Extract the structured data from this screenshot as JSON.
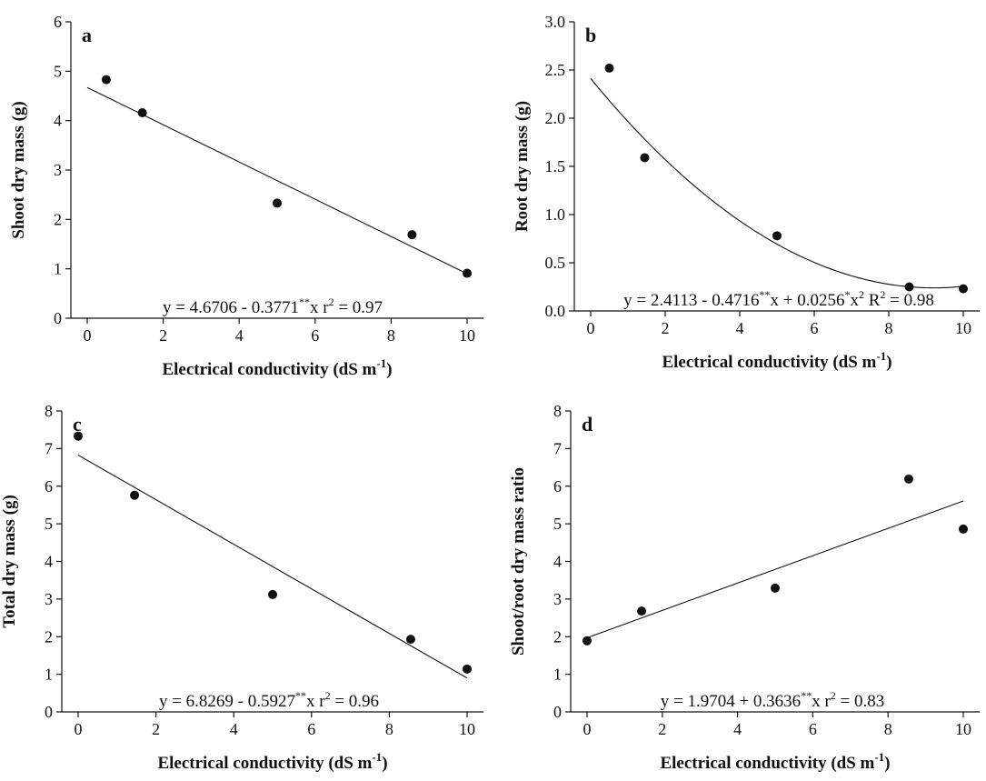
{
  "chart_data": [
    {
      "panel_label": "a",
      "type": "scatter",
      "xlabel": "Electrical conductivity (dS m",
      "xlabel_sup": "-1",
      "xlabel_end": ")",
      "ylabel": "Shoot dry mass (g)",
      "xlim": [
        0,
        10
      ],
      "ylim": [
        0,
        6
      ],
      "xticks": [
        "0",
        "2",
        "4",
        "6",
        "8",
        "10"
      ],
      "yticks": [
        "0",
        "1",
        "2",
        "3",
        "4",
        "5",
        "6"
      ],
      "points": [
        {
          "x": 0.5,
          "y": 4.83
        },
        {
          "x": 1.45,
          "y": 4.16
        },
        {
          "x": 5.0,
          "y": 2.33
        },
        {
          "x": 8.55,
          "y": 1.69
        },
        {
          "x": 10.0,
          "y": 0.91
        }
      ],
      "fit": {
        "kind": "linear",
        "coef": [
          4.6706,
          -0.3771
        ],
        "x_range": [
          0,
          10
        ]
      },
      "equation": [
        {
          "t": "y = 4.6706 - 0.3771"
        },
        {
          "t": "**",
          "sup": true
        },
        {
          "t": "x  r"
        },
        {
          "t": "2",
          "sup": true
        },
        {
          "t": " = 0.97"
        }
      ]
    },
    {
      "panel_label": "b",
      "type": "scatter",
      "xlabel": "Electrical conductivity (dS m",
      "xlabel_sup": "-1",
      "xlabel_end": ")",
      "ylabel": "Root dry mass (g)",
      "xlim": [
        0,
        10
      ],
      "ylim": [
        0,
        3
      ],
      "xticks": [
        "0",
        "2",
        "4",
        "6",
        "8",
        "10"
      ],
      "yticks": [
        "0.0",
        "0.5",
        "1.0",
        "1.5",
        "2.0",
        "2.5",
        "3.0"
      ],
      "points": [
        {
          "x": 0.5,
          "y": 2.52
        },
        {
          "x": 1.45,
          "y": 1.59
        },
        {
          "x": 5.0,
          "y": 0.78
        },
        {
          "x": 8.55,
          "y": 0.25
        },
        {
          "x": 10.0,
          "y": 0.23
        }
      ],
      "fit": {
        "kind": "quadratic",
        "coef": [
          2.4113,
          -0.4716,
          0.0256
        ],
        "x_range": [
          0,
          10
        ]
      },
      "equation": [
        {
          "t": "y = 2.4113 - 0.4716"
        },
        {
          "t": "**",
          "sup": true
        },
        {
          "t": "x + 0.0256"
        },
        {
          "t": "*",
          "sup": true
        },
        {
          "t": "x"
        },
        {
          "t": "2",
          "sup": true
        },
        {
          "t": " R"
        },
        {
          "t": "2",
          "sup": true
        },
        {
          "t": " = 0.98"
        }
      ]
    },
    {
      "panel_label": "c",
      "type": "scatter",
      "xlabel": "Electrical conductivity (dS m",
      "xlabel_sup": "-1",
      "xlabel_end": ")",
      "ylabel": "Total dry mass (g)",
      "xlim": [
        0,
        10
      ],
      "ylim": [
        0,
        8
      ],
      "xticks": [
        "0",
        "2",
        "4",
        "6",
        "8",
        "10"
      ],
      "yticks": [
        "0",
        "1",
        "2",
        "3",
        "4",
        "5",
        "6",
        "7",
        "8"
      ],
      "points": [
        {
          "x": 0.0,
          "y": 7.33
        },
        {
          "x": 1.45,
          "y": 5.76
        },
        {
          "x": 5.0,
          "y": 3.12
        },
        {
          "x": 8.55,
          "y": 1.93
        },
        {
          "x": 10.0,
          "y": 1.14
        }
      ],
      "fit": {
        "kind": "linear",
        "coef": [
          6.8269,
          -0.5927
        ],
        "x_range": [
          0,
          10
        ]
      },
      "equation": [
        {
          "t": "y = 6.8269 - 0.5927"
        },
        {
          "t": "**",
          "sup": true
        },
        {
          "t": "x  r"
        },
        {
          "t": "2",
          "sup": true
        },
        {
          "t": " = 0.96"
        }
      ]
    },
    {
      "panel_label": "d",
      "type": "scatter",
      "xlabel": "Electrical conductivity (dS m",
      "xlabel_sup": "-1",
      "xlabel_end": ")",
      "ylabel": "Shoot/root dry mass ratio",
      "xlim": [
        0,
        10
      ],
      "ylim": [
        0,
        8
      ],
      "xticks": [
        "0",
        "2",
        "4",
        "6",
        "8",
        "10"
      ],
      "yticks": [
        "0",
        "1",
        "2",
        "3",
        "4",
        "5",
        "6",
        "7",
        "8"
      ],
      "points": [
        {
          "x": 0.0,
          "y": 1.89
        },
        {
          "x": 1.45,
          "y": 2.68
        },
        {
          "x": 5.0,
          "y": 3.29
        },
        {
          "x": 8.55,
          "y": 6.19
        },
        {
          "x": 10.0,
          "y": 4.86
        }
      ],
      "fit": {
        "kind": "linear",
        "coef": [
          1.9704,
          0.3636
        ],
        "x_range": [
          0,
          10
        ]
      },
      "equation": [
        {
          "t": "y = 1.9704 + 0.3636"
        },
        {
          "t": "**",
          "sup": true
        },
        {
          "t": "x  r"
        },
        {
          "t": "2",
          "sup": true
        },
        {
          "t": " = 0.83"
        }
      ]
    }
  ]
}
